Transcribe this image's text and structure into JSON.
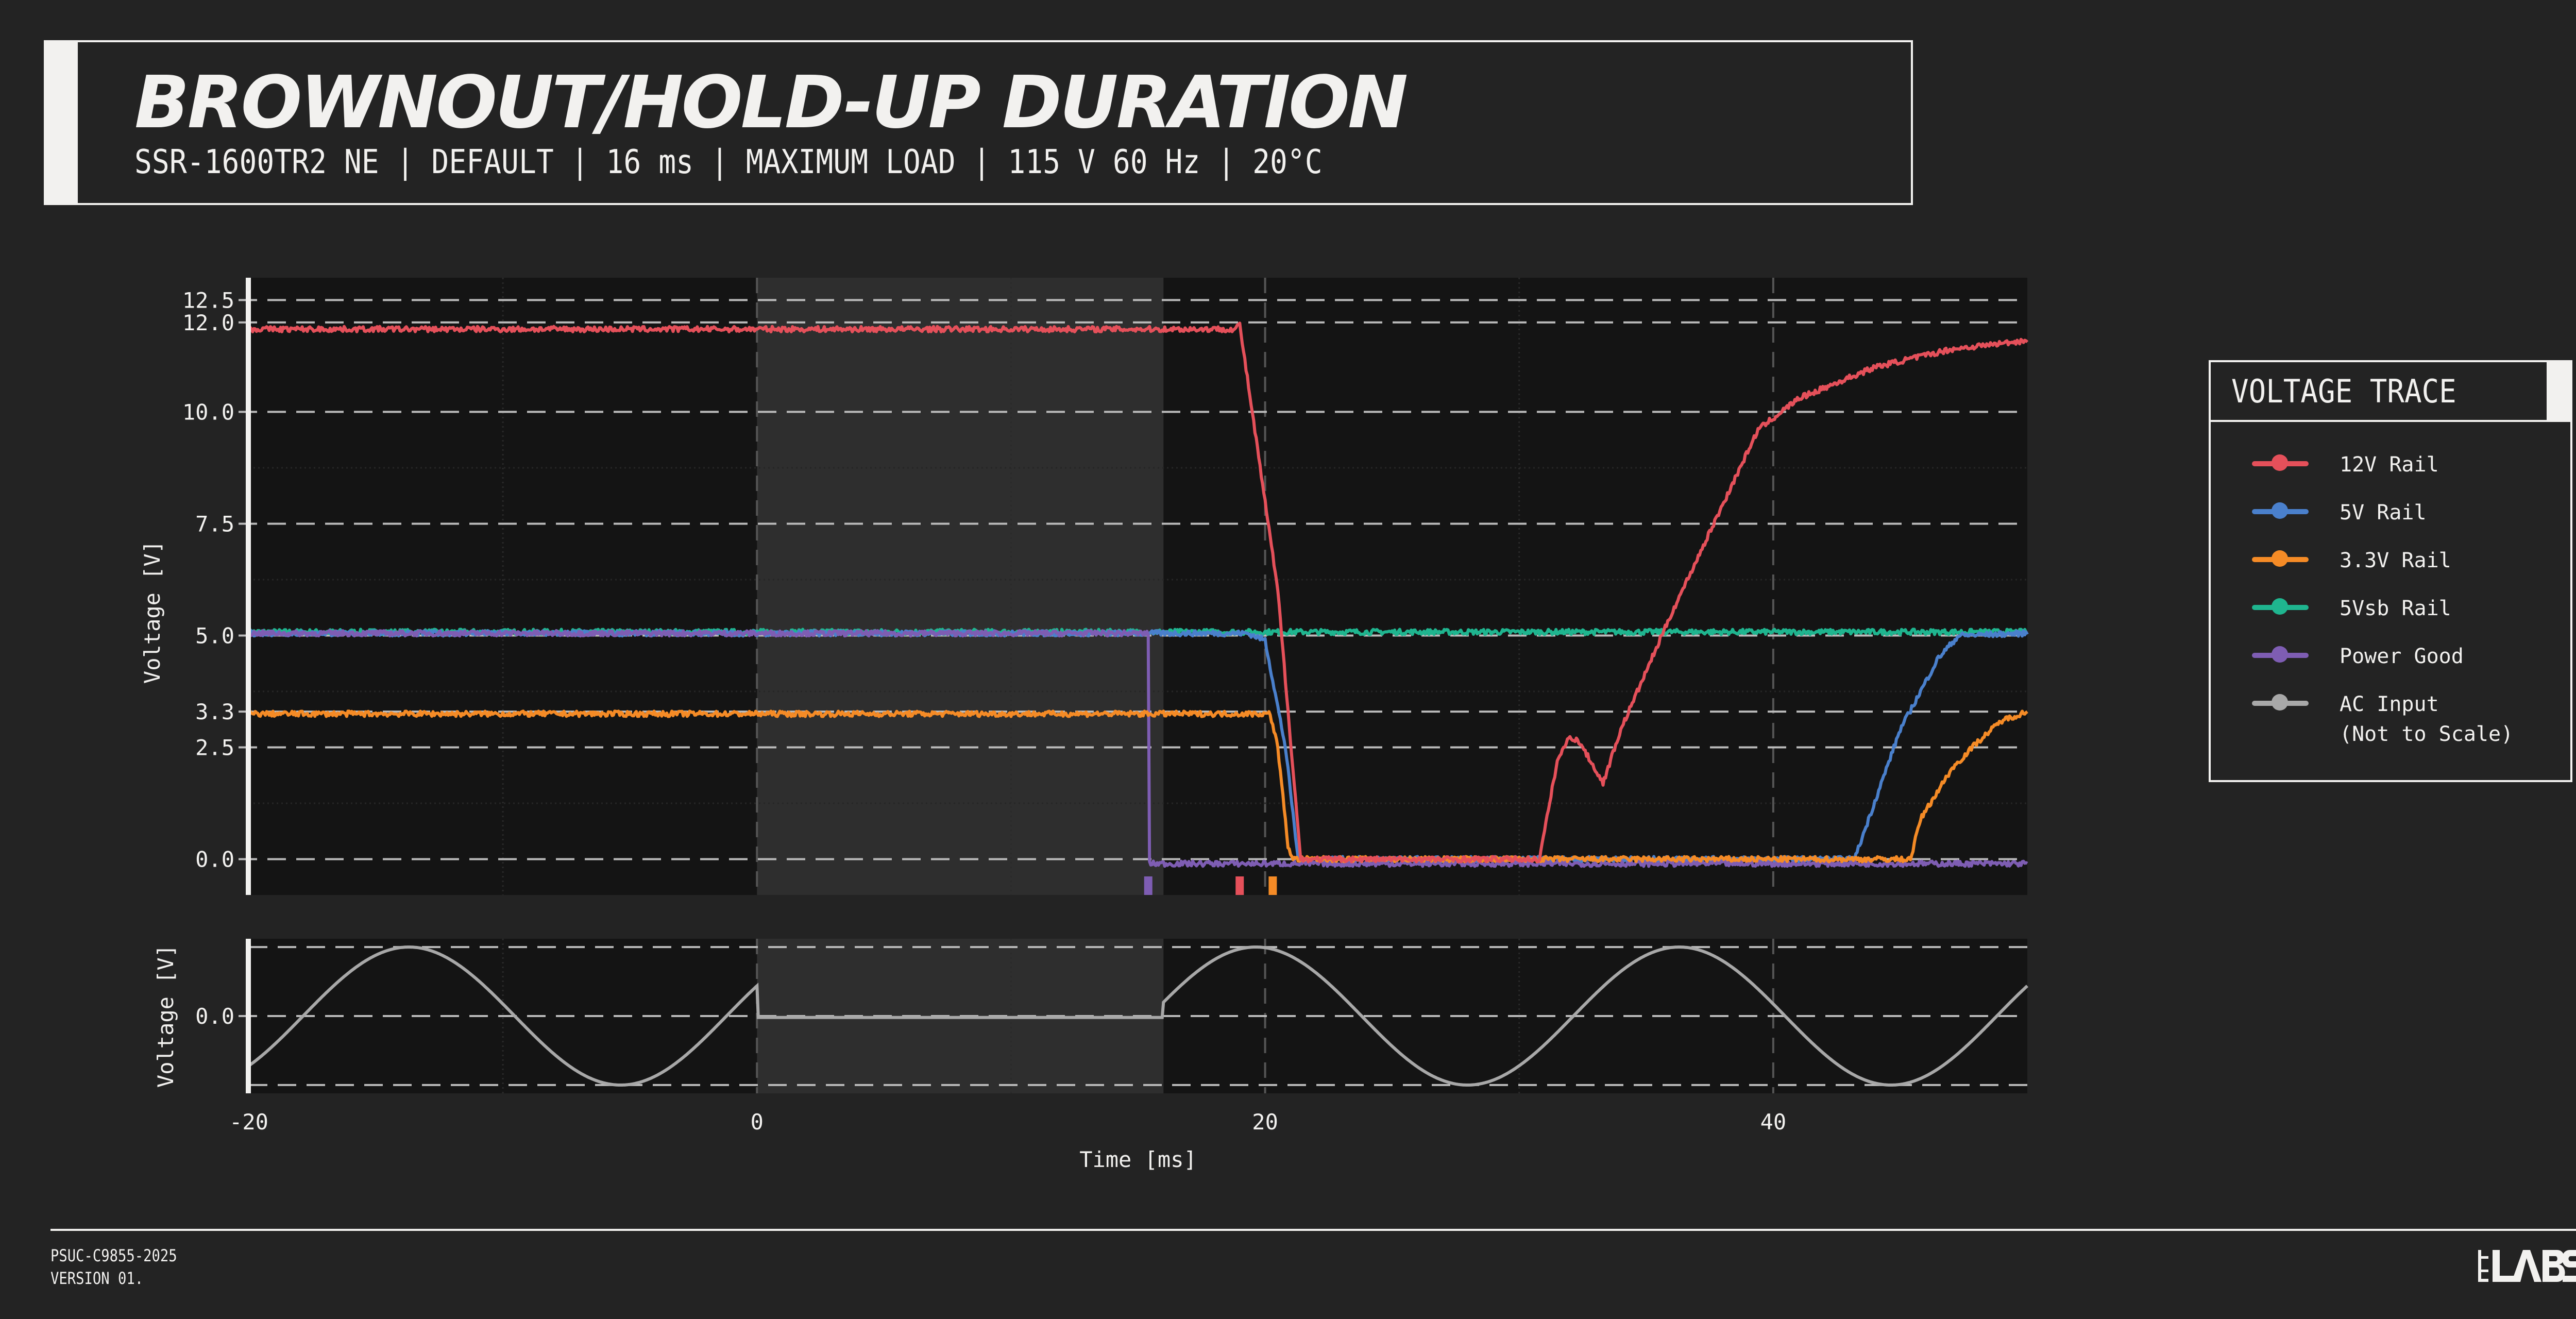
{
  "header": {
    "title": "BROWNOUT/HOLD-UP DURATION",
    "subtitle": "SSR-1600TR2 NE | DEFAULT | 16 ms | MAXIMUM LOAD | 115 V 60 Hz | 20°C"
  },
  "legend": {
    "title": "VOLTAGE TRACE",
    "items": [
      {
        "label": "12V Rail",
        "color": "#e5505a"
      },
      {
        "label": "5V Rail",
        "color": "#4a80cc"
      },
      {
        "label": "3.3V Rail",
        "color": "#f58b26"
      },
      {
        "label": "5Vsb Rail",
        "color": "#1fb58f"
      },
      {
        "label": "Power Good",
        "color": "#7e5db3"
      },
      {
        "label": "AC Input\n(Not to Scale)",
        "color": "#a8a8a8"
      }
    ]
  },
  "footer": {
    "code": "PSUC-C9855-2025",
    "version": "VERSION 01.",
    "logo": "LTT LABS"
  },
  "chart_data": [
    {
      "type": "line",
      "ylabel": "Voltage [V]",
      "xlim": [
        -20,
        50
      ],
      "ylim": [
        -0.8,
        13
      ],
      "yticks": [
        "12.5",
        "12.0",
        "10.0",
        "7.5",
        "5.0",
        "3.3",
        "2.5",
        "0.0"
      ],
      "grid": true,
      "shaded_region_ms": [
        0,
        16
      ],
      "series": [
        {
          "name": "12V Rail",
          "color": "#e5505a",
          "points": [
            [
              -20,
              11.85
            ],
            [
              18.8,
              11.85
            ],
            [
              19.0,
              11.95
            ],
            [
              20.5,
              6.0
            ],
            [
              21.4,
              0
            ],
            [
              30.8,
              0
            ],
            [
              31.5,
              2.2
            ],
            [
              32.0,
              2.75
            ],
            [
              32.4,
              2.6
            ],
            [
              33.3,
              1.7
            ],
            [
              34.0,
              2.9
            ],
            [
              36.0,
              5.5
            ],
            [
              39.4,
              9.6
            ],
            [
              41.0,
              10.3
            ],
            [
              44.0,
              11.0
            ],
            [
              47.0,
              11.4
            ],
            [
              50.0,
              11.6
            ]
          ]
        },
        {
          "name": "5V Rail",
          "color": "#4a80cc",
          "points": [
            [
              -20,
              5.05
            ],
            [
              19.3,
              5.05
            ],
            [
              20.0,
              4.9
            ],
            [
              20.8,
              2.5
            ],
            [
              21.3,
              0
            ],
            [
              43.2,
              0
            ],
            [
              45.0,
              2.9
            ],
            [
              46.5,
              4.5
            ],
            [
              47.3,
              5.0
            ],
            [
              50,
              5.05
            ]
          ]
        },
        {
          "name": "3.3V Rail",
          "color": "#f58b26",
          "points": [
            [
              -20,
              3.25
            ],
            [
              20.2,
              3.25
            ],
            [
              20.5,
              2.5
            ],
            [
              20.9,
              0.3
            ],
            [
              21.1,
              0
            ],
            [
              45.4,
              0
            ],
            [
              45.8,
              0.9
            ],
            [
              47.0,
              2.0
            ],
            [
              48.0,
              2.6
            ],
            [
              49.0,
              3.1
            ],
            [
              50,
              3.3
            ]
          ]
        },
        {
          "name": "5Vsb Rail",
          "color": "#1fb58f",
          "points": [
            [
              -20,
              5.08
            ],
            [
              50,
              5.08
            ]
          ]
        },
        {
          "name": "Power Good",
          "color": "#7e5db3",
          "points": [
            [
              -20,
              5.05
            ],
            [
              15.4,
              5.05
            ],
            [
              15.45,
              -0.1
            ],
            [
              50,
              -0.1
            ]
          ]
        }
      ],
      "event_markers_ms": [
        {
          "series": "Power Good",
          "t": 15.4,
          "color": "#7e5db3"
        },
        {
          "series": "12V Rail",
          "t": 19.0,
          "color": "#e5505a"
        },
        {
          "series": "3.3V Rail",
          "t": 20.3,
          "color": "#f58b26"
        }
      ]
    },
    {
      "type": "line",
      "xlabel": "Time [ms]",
      "ylabel": "Voltage [V]",
      "xlim": [
        -20,
        50
      ],
      "xticks": [
        "-20",
        "0",
        "20",
        "40"
      ],
      "yticks": [
        "0.0"
      ],
      "grid": true,
      "shaded_region_ms": [
        0,
        16
      ],
      "series": [
        {
          "name": "AC Input",
          "color": "#a8a8a8",
          "frequency_hz": 60,
          "outage_ms": [
            0,
            16
          ]
        }
      ]
    }
  ]
}
